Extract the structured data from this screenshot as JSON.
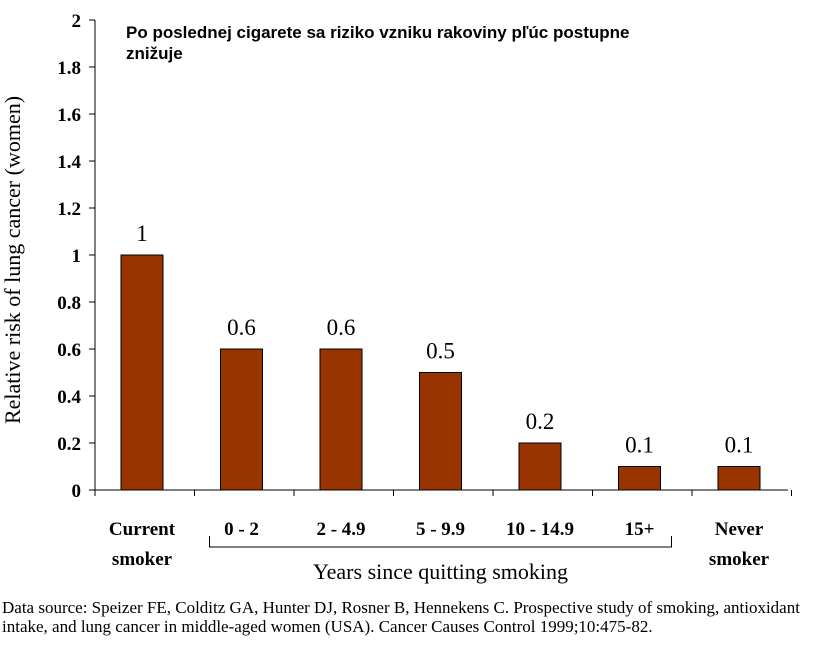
{
  "chart_data": {
    "type": "bar",
    "title": "Po poslednej cigarete sa riziko vzniku rakoviny pľúc postupne znižuje",
    "title_lines": [
      "Po poslednej cigarete sa riziko vzniku rakoviny pľúc postupne",
      "znižuje"
    ],
    "categories": [
      "Current smoker",
      "0 - 2",
      "2 - 4.9",
      "5 - 9.9",
      "10 - 14.9",
      "15+",
      "Never smoker"
    ],
    "category_lines": [
      [
        "Current",
        "smoker"
      ],
      [
        "0 - 2"
      ],
      [
        "2 - 4.9"
      ],
      [
        "5 - 9.9"
      ],
      [
        "10 - 14.9"
      ],
      [
        "15+"
      ],
      [
        "Never",
        "smoker"
      ]
    ],
    "values": [
      1,
      0.6,
      0.6,
      0.5,
      0.2,
      0.1,
      0.1
    ],
    "data_labels": [
      "1",
      "0.6",
      "0.6",
      "0.5",
      "0.2",
      "0.1",
      "0.1"
    ],
    "ylabel": "Relative risk of lung cancer (women)",
    "xlabel": "Years since quitting smoking",
    "ylim": [
      0,
      2
    ],
    "yticks": [
      "0",
      "0.2",
      "0.4",
      "0.6",
      "0.8",
      "1",
      "1.2",
      "1.4",
      "1.6",
      "1.8",
      "2"
    ],
    "bar_color": "#993300",
    "grid": false,
    "bracket_range": [
      "0 - 2",
      "15+"
    ]
  },
  "source_text": "Data source:  Speizer FE, Colditz GA, Hunter DJ, Rosner B, Hennekens C. Prospective study of smoking, antioxidant intake, and lung cancer in middle-aged women (USA). Cancer Causes Control 1999;10:475-82."
}
